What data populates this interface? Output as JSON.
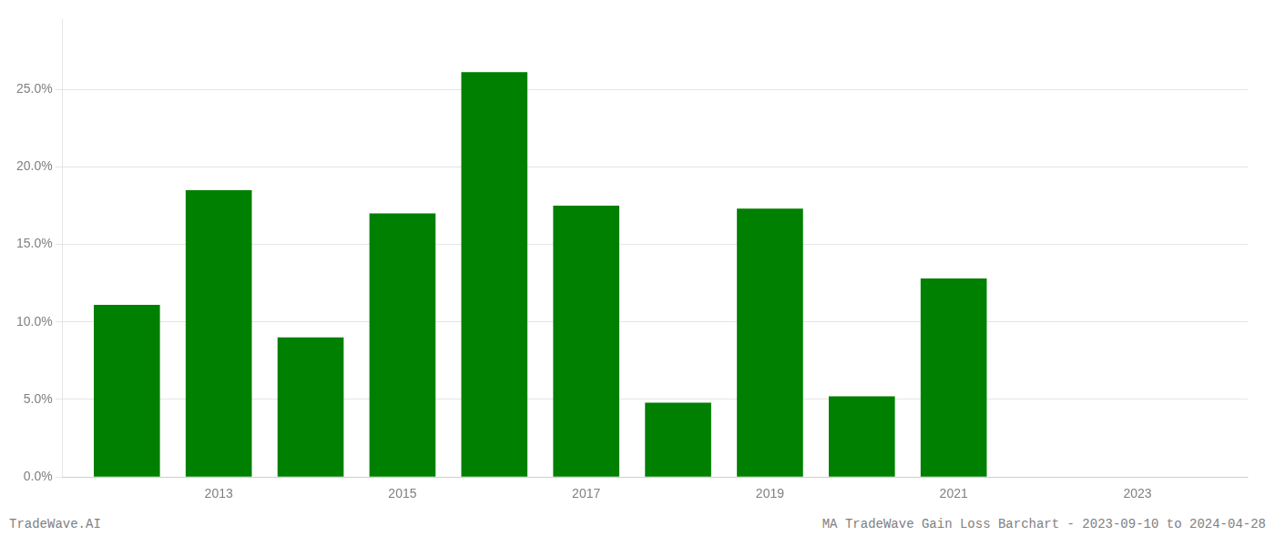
{
  "chart_data": {
    "type": "bar",
    "x": [
      2012,
      2013,
      2014,
      2015,
      2016,
      2017,
      2018,
      2019,
      2020,
      2021,
      2022
    ],
    "values": [
      0.111,
      0.185,
      0.09,
      0.17,
      0.261,
      0.175,
      0.048,
      0.173,
      0.052,
      0.128,
      0.0
    ],
    "color": "#008000",
    "xlim": [
      2011.3,
      2024.2
    ],
    "xticks": [
      2013,
      2015,
      2017,
      2019,
      2021,
      2023
    ],
    "ylim": [
      0.0,
      0.295
    ],
    "yticks": [
      {
        "value": 0.0,
        "label": "0.0%"
      },
      {
        "value": 0.05,
        "label": "5.0%"
      },
      {
        "value": 0.1,
        "label": "10.0%"
      },
      {
        "value": 0.15,
        "label": "15.0%"
      },
      {
        "value": 0.2,
        "label": "20.0%"
      },
      {
        "value": 0.25,
        "label": "25.0%"
      }
    ],
    "grid": "y",
    "annotations": [
      "TradeWave.AI",
      "MA TradeWave Gain Loss Barchart - 2023-09-10 to 2024-04-28"
    ]
  }
}
